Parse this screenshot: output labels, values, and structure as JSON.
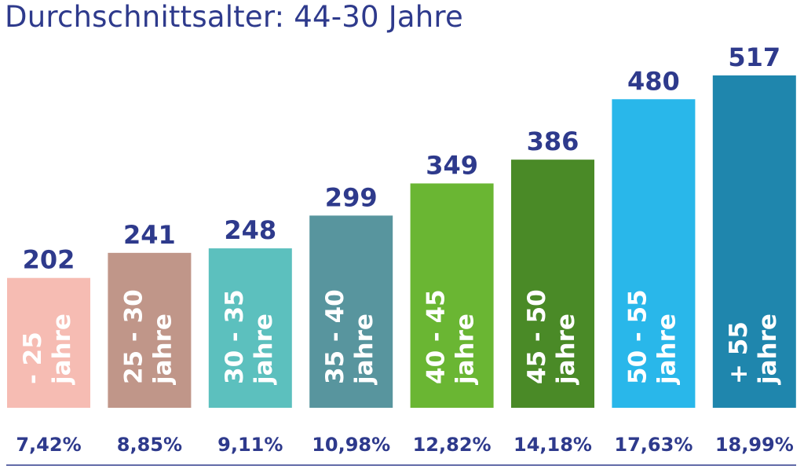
{
  "chart_data": {
    "type": "bar",
    "title": "Durchschnittsalter: 44-30 Jahre",
    "categories": [
      [
        "- 25",
        "jahre"
      ],
      [
        "25 - 30",
        "jahre"
      ],
      [
        "30 - 35",
        "jahre"
      ],
      [
        "35 - 40",
        "jahre"
      ],
      [
        "40 - 45",
        "jahre"
      ],
      [
        "45 - 50",
        "jahre"
      ],
      [
        "50 - 55",
        "jahre"
      ],
      [
        "+ 55",
        "jahre"
      ]
    ],
    "values": [
      202,
      241,
      248,
      299,
      349,
      386,
      480,
      517
    ],
    "value_labels": [
      "202",
      "241",
      "248",
      "299",
      "349",
      "386",
      "480",
      "517"
    ],
    "percentages": [
      "7,42%",
      "8,85%",
      "9,11%",
      "10,98%",
      "12,82%",
      "14,18%",
      "17,63%",
      "18,99%"
    ],
    "colors": [
      "#f6bcb3",
      "#c09689",
      "#5cc0be",
      "#58959e",
      "#6ab633",
      "#4a8a27",
      "#29b7ea",
      "#1f86ad"
    ],
    "ylim": [
      0,
      517
    ],
    "grid": false,
    "legend": "none",
    "baseline_color": "#2e3a8c"
  }
}
